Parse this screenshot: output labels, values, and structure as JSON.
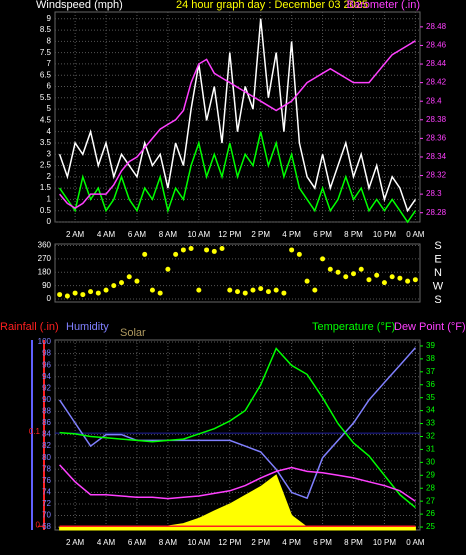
{
  "chart_data": [
    {
      "type": "line",
      "labels": [
        {
          "text": "Windspeed (mph)",
          "color": "#ffffff"
        },
        {
          "text": "24 hour graph day : December 03 2025",
          "color": "#ffff00"
        },
        {
          "text": "Barometer (.in)",
          "color": "#ff40ff"
        }
      ],
      "x": [
        1,
        1.5,
        2,
        2.5,
        3,
        3.5,
        4,
        4.5,
        5,
        5.5,
        6,
        6.5,
        7,
        7.5,
        8,
        8.5,
        9,
        9.5,
        10,
        10.5,
        11,
        11.5,
        12,
        12.5,
        13,
        13.5,
        14,
        14.5,
        15,
        15.5,
        16,
        16.5,
        17,
        17.5,
        18,
        18.5,
        19,
        19.5,
        20,
        20.5,
        21,
        21.5,
        22,
        22.5,
        23,
        23.5,
        24
      ],
      "xlim": [
        0.7,
        24.3
      ],
      "xticks": [
        {
          "value": 2,
          "label": "2 AM"
        },
        {
          "value": 4,
          "label": "4 AM"
        },
        {
          "value": 6,
          "label": "6 AM"
        },
        {
          "value": 8,
          "label": "8 AM"
        },
        {
          "value": 10,
          "label": "10 AM"
        },
        {
          "value": 12,
          "label": "12 PM"
        },
        {
          "value": 14,
          "label": "2 PM"
        },
        {
          "value": 16,
          "label": "4 PM"
        },
        {
          "value": 18,
          "label": "6 PM"
        },
        {
          "value": 20,
          "label": "8 PM"
        },
        {
          "value": 22,
          "label": "10 PM"
        },
        {
          "value": 24,
          "label": "0 AM"
        }
      ],
      "ylim": [
        0,
        9.3
      ],
      "yticks": [
        0,
        0.5,
        1,
        1.5,
        2,
        2.5,
        3,
        3.5,
        4,
        4.5,
        5,
        5.5,
        6,
        6.5,
        7,
        7.5,
        8,
        8.5,
        9
      ],
      "ycolor": "#ffffff",
      "y2lim": [
        28.27,
        28.496
      ],
      "y2ticks": [
        28.28,
        28.3,
        28.32,
        28.34,
        28.36,
        28.38,
        28.4,
        28.42,
        28.44,
        28.46,
        28.48
      ],
      "y2color": "#ff40ff",
      "series": [
        {
          "color": "#ffffff",
          "style": "line",
          "values": [
            3,
            2,
            3.5,
            3,
            4,
            2.5,
            3.5,
            2,
            3,
            2.5,
            2,
            3.5,
            2.5,
            3,
            1.5,
            3.5,
            2.5,
            5,
            7,
            4.5,
            6,
            3.5,
            7.5,
            4,
            6,
            5,
            9,
            5.5,
            7.5,
            4,
            8,
            3.5,
            2,
            1.5,
            3,
            1.5,
            2.5,
            3.5,
            2,
            3,
            1.5,
            2.5,
            1,
            2,
            1.5,
            0.5,
            1
          ]
        },
        {
          "color": "#00ff00",
          "style": "line",
          "values": [
            1.5,
            1,
            0.5,
            2,
            1,
            1.5,
            0.5,
            1,
            2,
            1,
            0.5,
            1.5,
            1,
            2,
            0.5,
            1.5,
            1,
            2.5,
            3.5,
            2,
            3,
            2,
            3.5,
            2,
            3,
            2.5,
            4,
            2.5,
            3.5,
            2,
            3,
            1.5,
            1,
            0.5,
            1.5,
            0.5,
            1,
            2,
            1,
            1.5,
            0.5,
            1,
            0.5,
            1,
            0.5,
            0,
            0.5
          ]
        },
        {
          "color": "#ff40ff",
          "style": "line",
          "axis": "y2",
          "values": [
            28.3,
            28.29,
            28.285,
            28.29,
            28.3,
            28.3,
            28.3,
            28.31,
            28.325,
            28.335,
            28.34,
            28.35,
            28.36,
            28.37,
            28.375,
            28.38,
            28.39,
            28.42,
            28.44,
            28.445,
            28.43,
            28.425,
            28.42,
            28.415,
            28.41,
            28.405,
            28.4,
            28.395,
            28.39,
            28.395,
            28.4,
            28.41,
            28.42,
            28.425,
            28.43,
            28.435,
            28.43,
            28.425,
            28.42,
            28.42,
            28.42,
            28.43,
            28.44,
            28.45,
            28.455,
            28.46,
            28.465
          ]
        }
      ]
    },
    {
      "type": "scatter",
      "x": [
        1,
        1.5,
        2,
        2.5,
        3,
        3.5,
        4,
        4.5,
        5,
        5.5,
        6,
        6.5,
        7,
        7.5,
        8,
        8.5,
        9,
        9.5,
        10,
        10.5,
        11,
        11.5,
        12,
        12.5,
        13,
        13.5,
        14,
        14.5,
        15,
        15.5,
        16,
        16.5,
        17,
        17.5,
        18,
        18.5,
        19,
        19.5,
        20,
        20.5,
        21,
        21.5,
        22,
        22.5,
        23,
        23.5,
        24
      ],
      "xlim": [
        0.7,
        24.3
      ],
      "ylim": [
        -20,
        370
      ],
      "yticks": [
        0,
        90,
        180,
        270,
        360
      ],
      "ycolor": "#ffffff",
      "compass": [
        "S",
        "E",
        "N",
        "W",
        "S"
      ],
      "series": [
        {
          "color": "#ffff00",
          "style": "dots",
          "values": [
            30,
            20,
            40,
            30,
            50,
            40,
            60,
            90,
            110,
            150,
            120,
            300,
            60,
            40,
            200,
            300,
            330,
            340,
            60,
            330,
            320,
            340,
            60,
            50,
            40,
            60,
            70,
            50,
            60,
            40,
            330,
            300,
            120,
            60,
            270,
            200,
            180,
            150,
            170,
            200,
            130,
            160,
            110,
            150,
            140,
            120,
            130
          ]
        }
      ]
    },
    {
      "type": "line",
      "labels": [
        {
          "text": "Rainfall (.in)",
          "color": "#ff2020"
        },
        {
          "text": "Humidity",
          "color": "#8080ff"
        },
        {
          "text": "Solar",
          "color": "#b09a60"
        },
        {
          "text": "Temperature (°F)",
          "color": "#00ff00"
        },
        {
          "text": "Dew Point (°F)",
          "color": "#ff40ff"
        }
      ],
      "x": [
        1,
        2,
        3,
        4,
        5,
        6,
        7,
        8,
        9,
        10,
        11,
        12,
        13,
        14,
        15,
        16,
        17,
        18,
        19,
        20,
        21,
        22,
        23,
        24
      ],
      "xlim": [
        0.7,
        24.3
      ],
      "xticks": [
        {
          "value": 2,
          "label": "2 AM"
        },
        {
          "value": 4,
          "label": "4 AM"
        },
        {
          "value": 6,
          "label": "6 AM"
        },
        {
          "value": 8,
          "label": "8 AM"
        },
        {
          "value": 10,
          "label": "10 AM"
        },
        {
          "value": 12,
          "label": "12 PM"
        },
        {
          "value": 14,
          "label": "2 PM"
        },
        {
          "value": 16,
          "label": "4 PM"
        },
        {
          "value": 18,
          "label": "6 PM"
        },
        {
          "value": 20,
          "label": "8 PM"
        },
        {
          "value": 22,
          "label": "10 PM"
        },
        {
          "value": 24,
          "label": "0 AM"
        }
      ],
      "ylim": [
        67.5,
        100.35
      ],
      "yticks": [
        68,
        70,
        72,
        74,
        76,
        78,
        80,
        82,
        84,
        86,
        88,
        90,
        92,
        94,
        96,
        98,
        100
      ],
      "ycolor": "#8080ff",
      "y2lim": [
        24.77,
        39.46
      ],
      "y2ticks": [
        25,
        26,
        27,
        28,
        29,
        30,
        31,
        32,
        33,
        34,
        35,
        36,
        37,
        38,
        39
      ],
      "y2color": "#00ff00",
      "rlim": [
        -0.004,
        0.2
      ],
      "rticks": [
        0,
        0.1
      ],
      "rcolor": "#ff2020",
      "series": [
        {
          "color": "#ffff00",
          "style": "area",
          "values": [
            68,
            68,
            68,
            68,
            68,
            68,
            68,
            68.2,
            68.6,
            69.5,
            70.8,
            72,
            73.5,
            75,
            77,
            70,
            68,
            68,
            68,
            68,
            68,
            68,
            68,
            68
          ]
        },
        {
          "color": "#8080ff",
          "style": "line",
          "values": [
            90,
            86,
            82,
            84,
            84,
            83,
            83,
            83,
            83,
            83,
            83,
            83,
            82,
            81,
            78,
            74,
            73,
            80,
            83,
            86,
            90,
            93,
            96,
            99
          ]
        },
        {
          "color": "#00ff00",
          "style": "line",
          "axis": "y2",
          "values": [
            32.3,
            32.2,
            32,
            31.9,
            31.8,
            31.7,
            31.6,
            31.7,
            31.8,
            32.2,
            32.6,
            33.2,
            34,
            36,
            38.8,
            37.5,
            36.8,
            35,
            33,
            31.5,
            30.5,
            29,
            27.5,
            26.5
          ]
        },
        {
          "color": "#ff40ff",
          "style": "line",
          "axis": "y2",
          "values": [
            29.8,
            28.5,
            27.5,
            27.5,
            27.4,
            27.3,
            27.3,
            27.2,
            27.3,
            27.4,
            27.6,
            27.8,
            28.2,
            28.8,
            29.3,
            29.6,
            29.3,
            29.2,
            29,
            28.8,
            28.5,
            28.2,
            27.8,
            27
          ]
        },
        {
          "color": "#ff2020",
          "style": "line",
          "axis": "r",
          "values": [
            0,
            0,
            0,
            0,
            0,
            0,
            0,
            0,
            0,
            0,
            0,
            0,
            0,
            0,
            0,
            0,
            0,
            0,
            0,
            0,
            0,
            0,
            0,
            0
          ]
        }
      ]
    }
  ]
}
